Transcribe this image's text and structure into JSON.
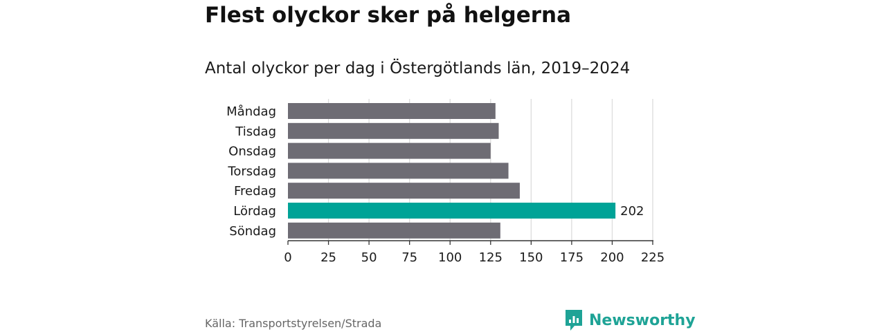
{
  "header": {
    "title": "Flest olyckor sker på helgerna",
    "subtitle": "Antal olyckor per dag i Östergötlands län, 2019–2024"
  },
  "footer": {
    "source": "Källa: Transportstyrelsen/Strada",
    "brand": "Newsworthy",
    "brand_icon": "newsworthy-logo-icon"
  },
  "colors": {
    "bar": "#6e6c74",
    "highlight": "#00a397",
    "grid": "#dcdcdc",
    "axis": "#333333",
    "text": "#1a1a1a",
    "brand": "#1ea396"
  },
  "chart_data": {
    "type": "bar",
    "orientation": "horizontal",
    "categories": [
      "Måndag",
      "Tisdag",
      "Onsdag",
      "Torsdag",
      "Fredag",
      "Lördag",
      "Söndag"
    ],
    "values": [
      128,
      130,
      125,
      136,
      143,
      202,
      131
    ],
    "highlight_category": "Lördag",
    "data_labels": [
      {
        "category": "Lördag",
        "label": "202"
      }
    ],
    "xlim": [
      0,
      225
    ],
    "xticks": [
      0,
      25,
      50,
      75,
      100,
      125,
      150,
      175,
      200,
      225
    ],
    "grid": true,
    "xlabel": "",
    "ylabel": ""
  }
}
